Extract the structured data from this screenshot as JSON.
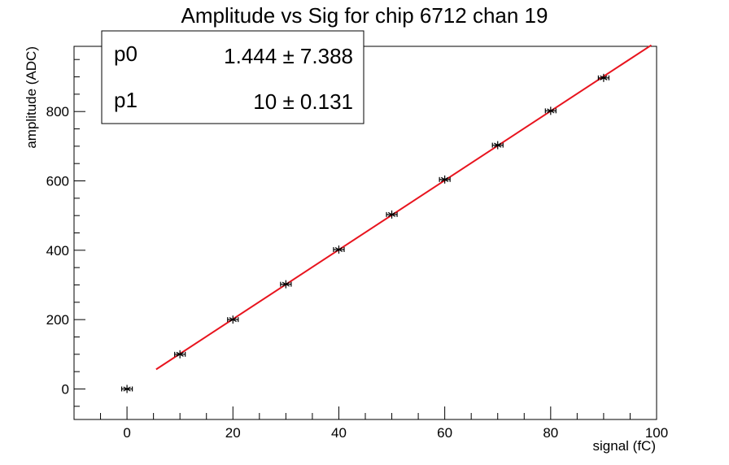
{
  "chart_data": {
    "type": "scatter",
    "title": "Amplitude vs Sig for chip 6712 chan 19",
    "xlabel": "signal (fC)",
    "ylabel": "amplitude (ADC)",
    "xlim": [
      -10,
      100
    ],
    "ylim": [
      -88,
      988
    ],
    "x_ticks": [
      0,
      20,
      40,
      60,
      80,
      100
    ],
    "y_ticks": [
      0,
      200,
      400,
      600,
      800
    ],
    "grid": false,
    "series": [
      {
        "marker": "star",
        "x": [
          0,
          10,
          20,
          30,
          40,
          50,
          60,
          70,
          80,
          90
        ],
        "y": [
          0,
          100,
          200,
          302,
          402,
          503,
          604,
          703,
          802,
          897
        ],
        "x_err": [
          1,
          1,
          1,
          1,
          1,
          1,
          1,
          1,
          1,
          1
        ]
      }
    ],
    "fit": {
      "color": "#e8141e",
      "x_range": [
        5.5,
        99
      ],
      "p0": 1.444,
      "p1": 10
    },
    "stats_box": {
      "placement": "top-left",
      "rows": [
        {
          "name": "p0",
          "value": "1.444 ± 7.388"
        },
        {
          "name": "p1",
          "value": "10 ± 0.131"
        }
      ]
    }
  }
}
